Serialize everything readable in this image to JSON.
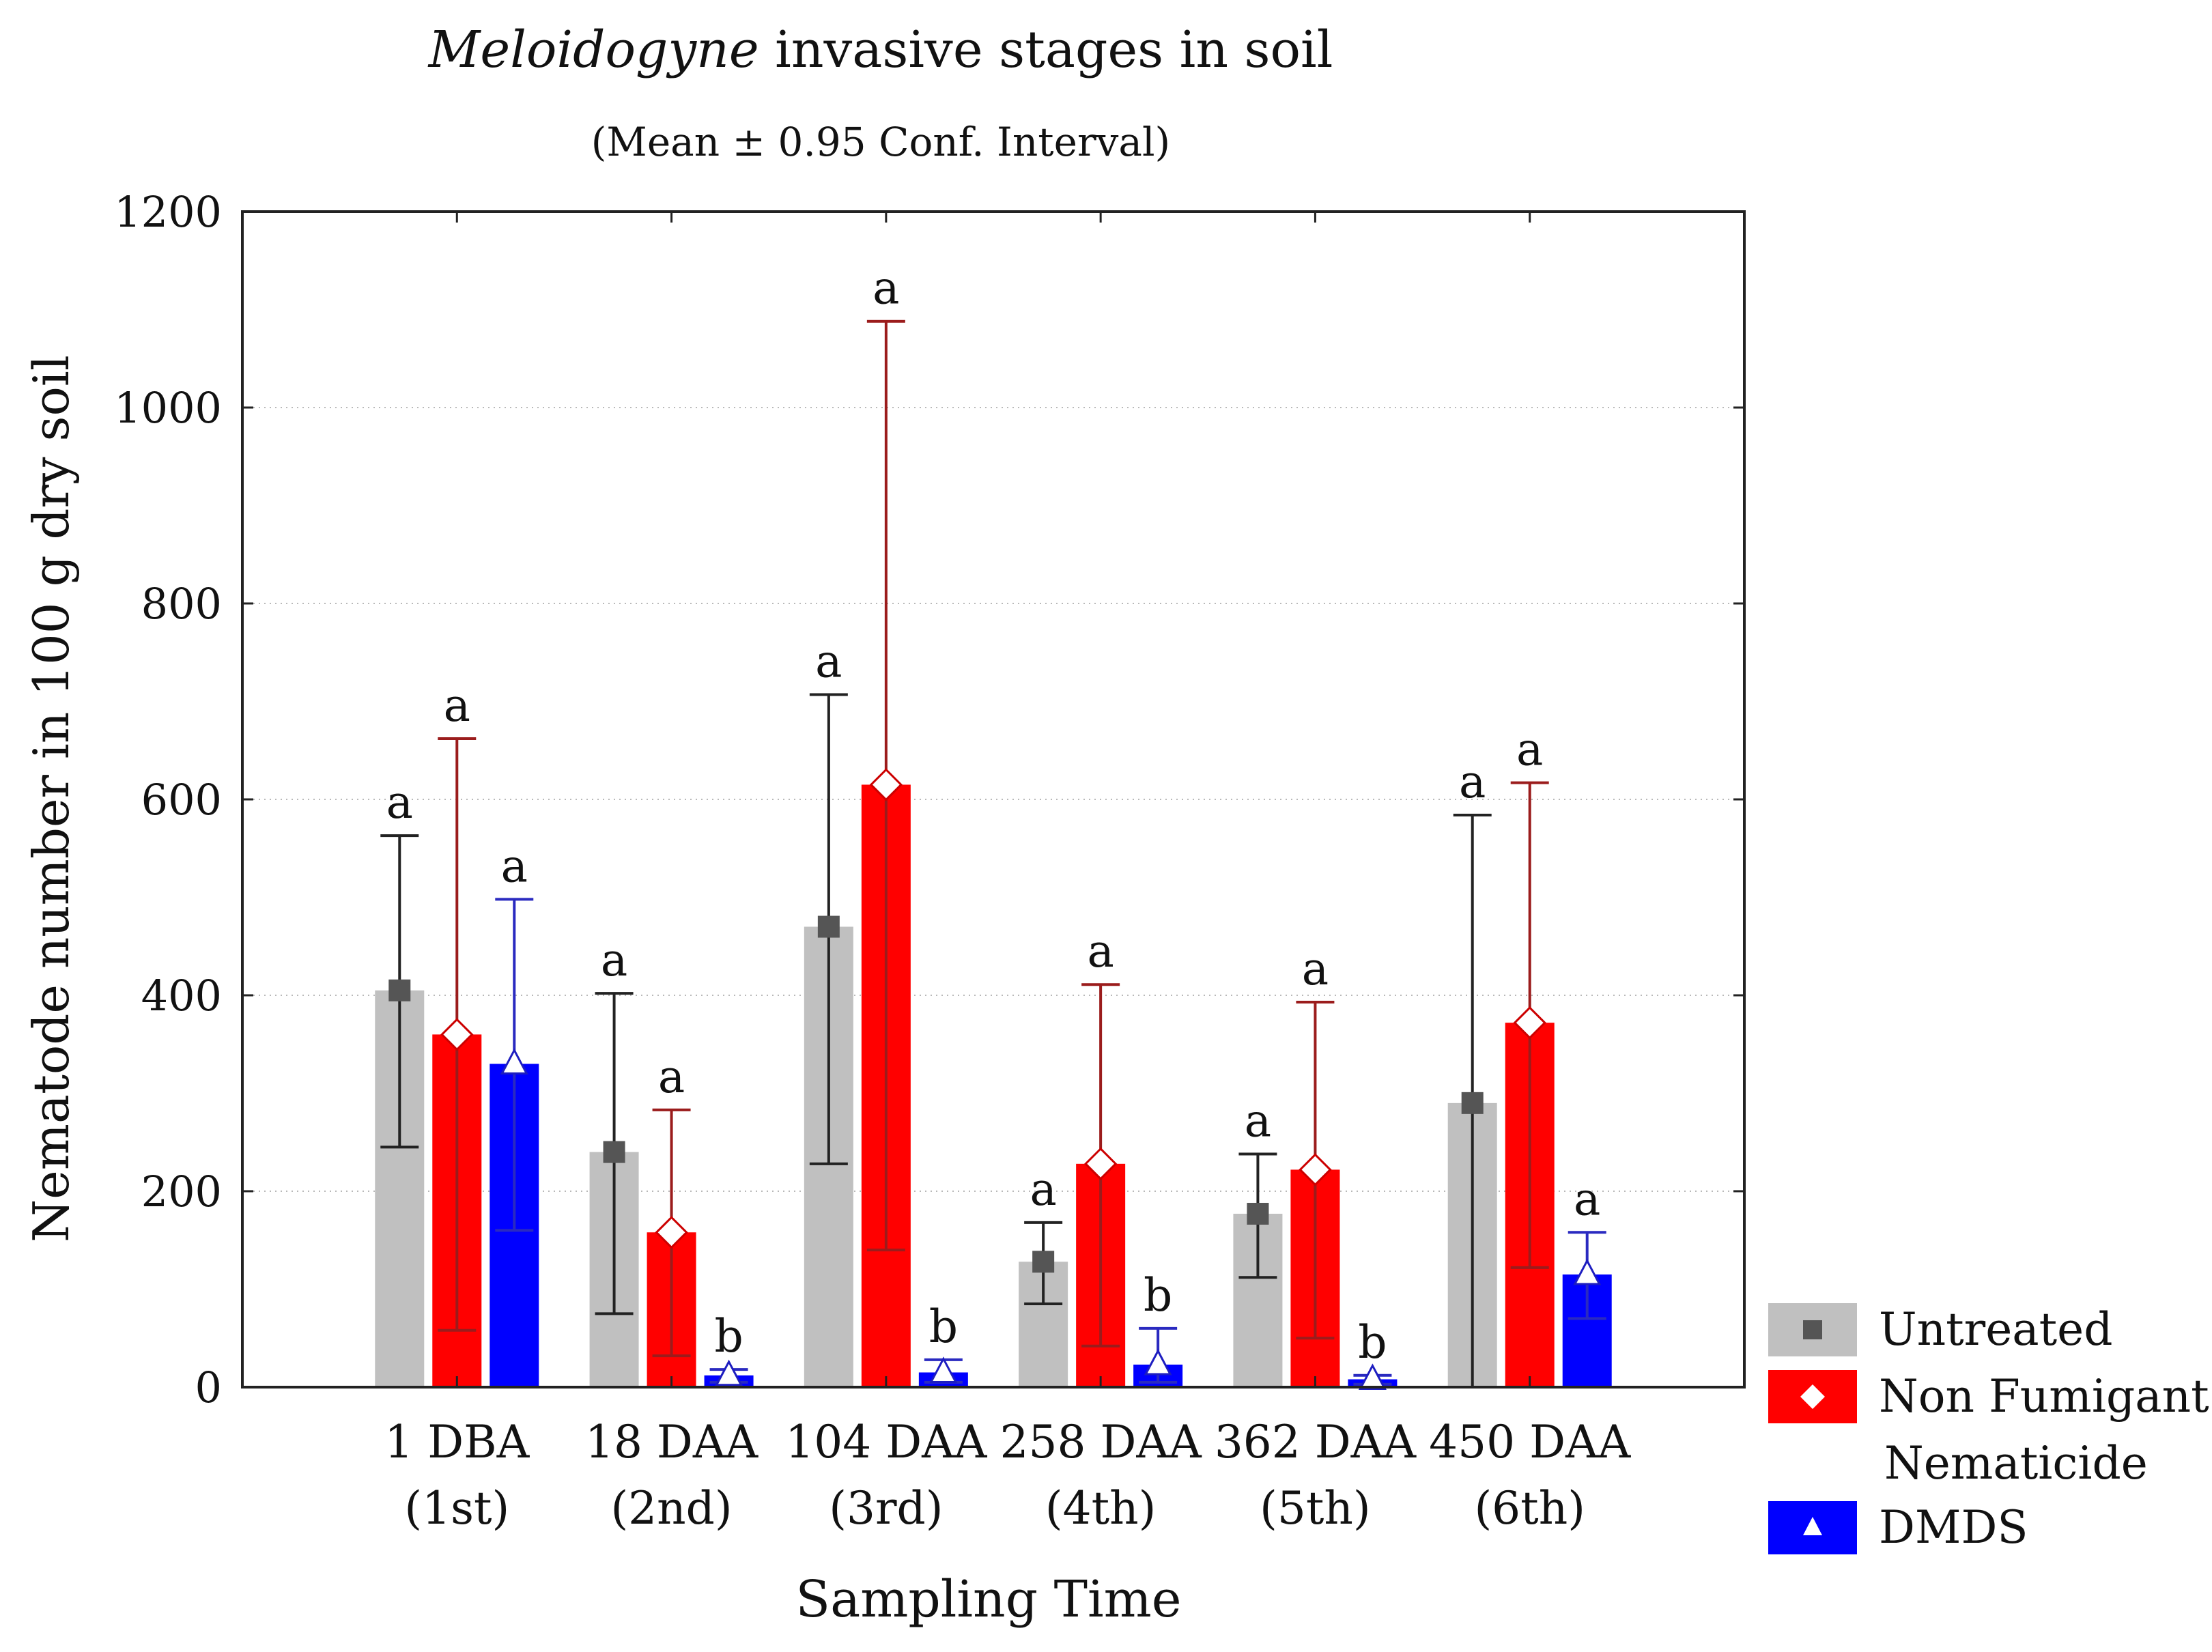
{
  "chart_data": {
    "type": "bar",
    "title_italic": "Meloidogyne",
    "title_rest": " invasive stages in soil",
    "subtitle": "(Mean ± 0.95 Conf. Interval)",
    "xlabel": "Sampling Time",
    "ylabel": "Nematode number in 100 g dry soil",
    "ylim": [
      0,
      1200
    ],
    "yticks": [
      0,
      200,
      400,
      600,
      800,
      1000,
      1200
    ],
    "grid": true,
    "legend_position": "bottom-right, outside plot",
    "categories": [
      {
        "line1": "1 DBA",
        "line2": "(1st)"
      },
      {
        "line1": "18 DAA",
        "line2": "(2nd)"
      },
      {
        "line1": "104 DAA",
        "line2": "(3rd)"
      },
      {
        "line1": "258 DAA",
        "line2": "(4th)"
      },
      {
        "line1": "362 DAA",
        "line2": "(5th)"
      },
      {
        "line1": "450 DAA",
        "line2": "(6th)"
      }
    ],
    "series": [
      {
        "name": "Untreated",
        "name_lines": [
          "Untreated"
        ],
        "color": "#c0c0c0",
        "marker": "square",
        "marker_color": "#555555",
        "values": [
          405,
          240,
          470,
          128,
          177,
          290
        ],
        "ci_low": [
          245,
          75,
          228,
          85,
          112,
          0
        ],
        "ci_high": [
          563,
          402,
          707,
          168,
          238,
          584
        ],
        "letters": [
          "a",
          "a",
          "a",
          "a",
          "a",
          "a"
        ],
        "error_color": "#222222"
      },
      {
        "name": "Non Fumigant Nematicide",
        "name_lines": [
          "Non Fumigant",
          "Nematicide"
        ],
        "color": "#ff0000",
        "marker": "diamond",
        "marker_color": "#ffffff",
        "values": [
          360,
          158,
          615,
          228,
          222,
          372
        ],
        "ci_low": [
          58,
          32,
          140,
          42,
          50,
          122
        ],
        "ci_high": [
          662,
          283,
          1088,
          411,
          393,
          617
        ],
        "letters": [
          "a",
          "a",
          "a",
          "a",
          "a",
          "a"
        ],
        "error_color": "#9b1c1c"
      },
      {
        "name": "DMDS",
        "name_lines": [
          "DMDS"
        ],
        "color": "#0000ff",
        "marker": "triangle",
        "marker_color": "#ffffff",
        "values": [
          330,
          12,
          15,
          23,
          8,
          115
        ],
        "ci_low": [
          160,
          5,
          5,
          5,
          3,
          70
        ],
        "ci_high": [
          498,
          18,
          28,
          60,
          12,
          158
        ],
        "letters": [
          "a",
          "b",
          "b",
          "b",
          "b",
          "a"
        ],
        "error_color": "#2a2ac0"
      }
    ]
  }
}
